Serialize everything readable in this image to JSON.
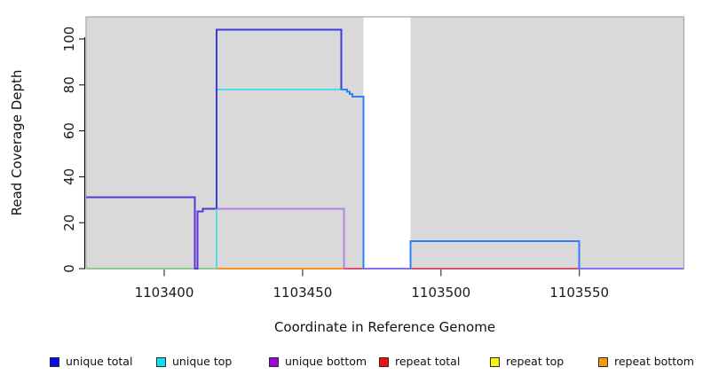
{
  "chart_data": {
    "type": "line",
    "title": "",
    "xlabel": "Coordinate in Reference Genome",
    "ylabel": "Read Coverage Depth",
    "xlim": [
      1103371.8,
      1103587.6
    ],
    "ylim": [
      0,
      109.7
    ],
    "x_ticks": [
      1103400,
      1103450,
      1103500,
      1103550
    ],
    "y_ticks": [
      0,
      20,
      40,
      60,
      80,
      100
    ],
    "grid": false,
    "legend_position": "bottom",
    "panel_bg": "#d9d9d9",
    "panel_border": "#a8a8a8",
    "highlight_band": {
      "x0": 1103472,
      "x1": 1103489,
      "color": "#ffffff"
    },
    "series": [
      {
        "name": "unique total",
        "color": "#0a0af2",
        "steps_x_value": [
          [
            1103371.8,
            31
          ],
          [
            1103411,
            0
          ],
          [
            1103412,
            25
          ],
          [
            1103414,
            26
          ],
          [
            1103419,
            104
          ],
          [
            1103464,
            78
          ],
          [
            1103466,
            77
          ],
          [
            1103467,
            76
          ],
          [
            1103468,
            75
          ],
          [
            1103472,
            0
          ],
          [
            1103489,
            12
          ],
          [
            1103550,
            0
          ],
          [
            1103587.6,
            0
          ]
        ]
      },
      {
        "name": "unique top",
        "color": "#06e3ee",
        "steps_x_value": [
          [
            1103371.8,
            0
          ],
          [
            1103419,
            78
          ],
          [
            1103464,
            78
          ],
          [
            1103466,
            77
          ],
          [
            1103467,
            76
          ],
          [
            1103468,
            75
          ],
          [
            1103472,
            0
          ],
          [
            1103489,
            12
          ],
          [
            1103550,
            0
          ],
          [
            1103587.6,
            0
          ]
        ]
      },
      {
        "name": "unique bottom",
        "color": "#9d05d6",
        "steps_x_value": [
          [
            1103371.8,
            31
          ],
          [
            1103411,
            0
          ],
          [
            1103412,
            25
          ],
          [
            1103414,
            26
          ],
          [
            1103465,
            0
          ],
          [
            1103587.6,
            0
          ]
        ]
      },
      {
        "name": "repeat total",
        "color": "#f20c0c",
        "steps_x_value": [
          [
            1103371.8,
            0
          ],
          [
            1103587.6,
            0
          ]
        ]
      },
      {
        "name": "repeat top",
        "color": "#f5f507",
        "steps_x_value": [
          [
            1103371.8,
            0
          ],
          [
            1103587.6,
            0
          ]
        ]
      },
      {
        "name": "repeat bottom",
        "color": "#f59a05",
        "steps_x_value": [
          [
            1103371.8,
            0
          ],
          [
            1103587.6,
            0
          ]
        ]
      }
    ],
    "rendered_polylines": [
      {
        "note": "zero line left (overlapped top/repeat series)",
        "color": "#8fca8f",
        "width": 2,
        "points": [
          [
            1103371.8,
            0
          ],
          [
            1103411,
            0
          ]
        ]
      },
      {
        "note": "zero line notch where unique total drops",
        "color": "#5b35d6",
        "width": 2,
        "points": [
          [
            1103411,
            0
          ],
          [
            1103412,
            0
          ]
        ]
      },
      {
        "note": "zero line",
        "color": "#8fca8f",
        "width": 2,
        "points": [
          [
            1103412,
            0
          ],
          [
            1103419,
            0
          ]
        ]
      },
      {
        "note": "zero line orange region",
        "color": "#ff8d1f",
        "width": 2,
        "points": [
          [
            1103419,
            0
          ],
          [
            1103465,
            0
          ]
        ]
      },
      {
        "note": "zero line crimson region",
        "color": "#e0506e",
        "width": 2,
        "points": [
          [
            1103465,
            0
          ],
          [
            1103472,
            0
          ]
        ]
      },
      {
        "note": "zero line inside white band",
        "color": "#7b74f5",
        "width": 2,
        "points": [
          [
            1103472,
            0
          ],
          [
            1103489,
            0
          ]
        ]
      },
      {
        "note": "zero line crimson region",
        "color": "#e0506e",
        "width": 2,
        "points": [
          [
            1103489,
            0
          ],
          [
            1103550,
            0
          ]
        ]
      },
      {
        "note": "zero line right",
        "color": "#7b74f5",
        "width": 2,
        "points": [
          [
            1103550,
            0
          ],
          [
            1103587.6,
            0
          ]
        ]
      },
      {
        "note": "unique bottom alone at 26",
        "color": "#b283e3",
        "width": 2,
        "points": [
          [
            1103419,
            26
          ],
          [
            1103465,
            26
          ],
          [
            1103465,
            0
          ]
        ]
      },
      {
        "note": "unique total + bottom overlap (left plateau 31, dip, 25/26 steps)",
        "color": "#5b35d6",
        "width": 2,
        "points": [
          [
            1103371.8,
            31
          ],
          [
            1103411,
            31
          ],
          [
            1103411,
            0
          ],
          [
            1103412,
            0
          ],
          [
            1103412,
            25
          ],
          [
            1103414,
            25
          ],
          [
            1103414,
            26
          ],
          [
            1103419,
            26
          ]
        ]
      },
      {
        "note": "unique top rise to 78",
        "color": "#4edee9",
        "width": 2,
        "points": [
          [
            1103419,
            0
          ],
          [
            1103419,
            78
          ],
          [
            1103464,
            78
          ]
        ]
      },
      {
        "note": "unique total plateau 104",
        "color": "#3c3cd9",
        "width": 2,
        "points": [
          [
            1103419,
            26
          ],
          [
            1103419,
            104
          ],
          [
            1103464,
            104
          ],
          [
            1103464,
            78
          ]
        ]
      },
      {
        "note": "total+top merged stair 78-75 then drop",
        "color": "#2b7fff",
        "width": 2,
        "points": [
          [
            1103464,
            78
          ],
          [
            1103466,
            78
          ],
          [
            1103466,
            77
          ],
          [
            1103467,
            77
          ],
          [
            1103467,
            76
          ],
          [
            1103468,
            76
          ],
          [
            1103468,
            75
          ],
          [
            1103472,
            75
          ],
          [
            1103472,
            0
          ]
        ]
      },
      {
        "note": "total+top merged plateau 12",
        "color": "#2b7fff",
        "width": 2,
        "points": [
          [
            1103489,
            0
          ],
          [
            1103489,
            12
          ],
          [
            1103550,
            12
          ],
          [
            1103550,
            0
          ]
        ]
      }
    ]
  },
  "axes": {
    "x_tick_labels": [
      "1103400",
      "1103450",
      "1103500",
      "1103550"
    ],
    "y_tick_labels": [
      "0",
      "20",
      "40",
      "60",
      "80",
      "100"
    ],
    "xlabel": "Coordinate in Reference Genome",
    "ylabel": "Read Coverage Depth"
  },
  "legend": {
    "items": [
      {
        "label": "unique total",
        "color": "#0a0af2"
      },
      {
        "label": "unique top",
        "color": "#06e3ee"
      },
      {
        "label": "unique bottom",
        "color": "#9d05d6"
      },
      {
        "label": "repeat total",
        "color": "#f20c0c"
      },
      {
        "label": "repeat top",
        "color": "#f5f507"
      },
      {
        "label": "repeat bottom",
        "color": "#f59a05"
      }
    ]
  }
}
